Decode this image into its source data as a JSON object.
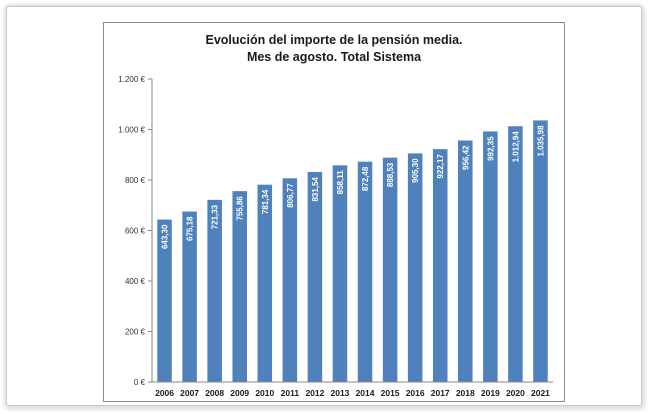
{
  "chart_data": {
    "type": "bar",
    "title_lines": [
      "Evolución del importe de la pensión media.",
      "Mes de agosto. Total Sistema"
    ],
    "categories": [
      "2006",
      "2007",
      "2008",
      "2009",
      "2010",
      "2011",
      "2012",
      "2013",
      "2014",
      "2015",
      "2016",
      "2017",
      "2018",
      "2019",
      "2020",
      "2021"
    ],
    "values": [
      643.3,
      675.18,
      721.33,
      755.86,
      781.34,
      806.77,
      831.54,
      858.11,
      872.48,
      888.53,
      905.3,
      922.17,
      956.42,
      992.35,
      1012.94,
      1035.98
    ],
    "data_labels": [
      "643,30",
      "675,18",
      "721,33",
      "755,86",
      "781,34",
      "806,77",
      "831,54",
      "858,11",
      "872,48",
      "888,53",
      "905,30",
      "922,17",
      "956,42",
      "992,35",
      "1.012,94",
      "1.035,98"
    ],
    "yticks": [
      0,
      200,
      400,
      600,
      800,
      1000,
      1200
    ],
    "ytick_labels": [
      "0 €",
      "200 €",
      "400 €",
      "600 €",
      "800 €",
      "1.000 €",
      "1.200 €"
    ],
    "ylim": [
      0,
      1200
    ],
    "grid": false,
    "bar_color": "#4f81bd",
    "legend": "none"
  }
}
